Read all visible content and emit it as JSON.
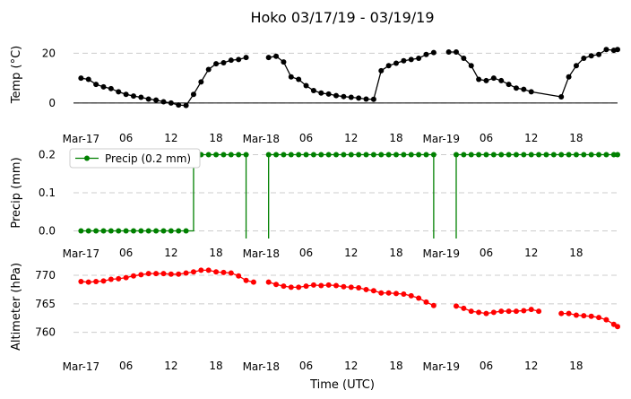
{
  "chart_data": {
    "type": "line",
    "title": "Hoko 03/17/19 - 03/19/19",
    "xlabel": "Time (UTC)",
    "x_ticks": [
      "Mar-17",
      "06",
      "12",
      "18",
      "Mar-18",
      "06",
      "12",
      "18",
      "Mar-19",
      "06",
      "12",
      "18"
    ],
    "x_tick_hours": [
      0,
      6,
      12,
      18,
      24,
      30,
      36,
      42,
      48,
      54,
      60,
      66
    ],
    "xlim": [
      -1,
      71.5
    ],
    "panels": [
      {
        "name": "temperature",
        "ylabel": "Temp (°C)",
        "ylim": [
          -4,
          27
        ],
        "yticks": [
          0,
          20
        ],
        "grid": true,
        "baseline": 0,
        "color": "#000000",
        "legend": "",
        "step": false,
        "series": [
          [
            [
              0,
              10
            ],
            [
              1,
              9.5
            ],
            [
              2,
              7.5
            ],
            [
              3,
              6.5
            ],
            [
              4,
              5.8
            ],
            [
              5,
              4.5
            ],
            [
              6,
              3.5
            ],
            [
              7,
              2.8
            ],
            [
              8,
              2.3
            ],
            [
              9,
              1.6
            ],
            [
              10,
              1.2
            ],
            [
              11,
              0.5
            ],
            [
              12,
              0
            ],
            [
              13,
              -0.8
            ],
            [
              14,
              -1
            ],
            [
              15,
              3.5
            ],
            [
              16,
              8.5
            ],
            [
              17,
              13.5
            ],
            [
              18,
              15.8
            ],
            [
              19,
              16.2
            ],
            [
              20,
              17.2
            ],
            [
              21,
              17.5
            ],
            [
              22,
              18.3
            ]
          ],
          [
            [
              25,
              18.3
            ],
            [
              26,
              18.8
            ],
            [
              27,
              16.5
            ],
            [
              28,
              10.5
            ],
            [
              29,
              9.5
            ],
            [
              30,
              7
            ],
            [
              31,
              5
            ],
            [
              32,
              4
            ],
            [
              33,
              3.6
            ],
            [
              34,
              3
            ],
            [
              35,
              2.6
            ],
            [
              36,
              2.3
            ],
            [
              37,
              2
            ],
            [
              38,
              1.6
            ],
            [
              39,
              1.5
            ],
            [
              40,
              13
            ],
            [
              41,
              15
            ],
            [
              42,
              16
            ],
            [
              43,
              17
            ],
            [
              44,
              17.5
            ],
            [
              45,
              18
            ],
            [
              46,
              19.5
            ],
            [
              47,
              20.3
            ]
          ],
          [
            [
              49,
              20.5
            ],
            [
              50,
              20.5
            ],
            [
              51,
              18
            ],
            [
              52,
              15
            ],
            [
              53,
              9.5
            ],
            [
              54,
              9
            ],
            [
              55,
              10
            ],
            [
              56,
              9
            ],
            [
              57,
              7.5
            ],
            [
              58,
              6
            ],
            [
              59,
              5.5
            ],
            [
              60,
              4.5
            ],
            [
              64,
              2.5
            ],
            [
              65,
              10.5
            ],
            [
              66,
              15
            ],
            [
              67,
              18
            ],
            [
              68,
              19
            ],
            [
              69,
              19.5
            ],
            [
              70,
              21.5
            ],
            [
              71,
              21.2
            ],
            [
              71.5,
              21.5
            ]
          ]
        ]
      },
      {
        "name": "precipitation",
        "ylabel": "Precip (mm)",
        "ylim": [
          -0.02,
          0.22
        ],
        "yticks": [
          0.0,
          0.1,
          0.2
        ],
        "grid": true,
        "baseline": null,
        "color": "#008000",
        "legend": "Precip (0.2 mm)",
        "step": true,
        "series": [
          [
            [
              0,
              0
            ],
            [
              1,
              0
            ],
            [
              2,
              0
            ],
            [
              3,
              0
            ],
            [
              4,
              0
            ],
            [
              5,
              0
            ],
            [
              6,
              0
            ],
            [
              7,
              0
            ],
            [
              8,
              0
            ],
            [
              9,
              0
            ],
            [
              10,
              0
            ],
            [
              11,
              0
            ],
            [
              12,
              0
            ],
            [
              13,
              0
            ],
            [
              14,
              0
            ],
            [
              15,
              0.2
            ],
            [
              16,
              0.2
            ],
            [
              17,
              0.2
            ],
            [
              18,
              0.2
            ],
            [
              19,
              0.2
            ],
            [
              20,
              0.2
            ],
            [
              21,
              0.2
            ],
            [
              22,
              0.2
            ]
          ],
          [
            [
              25,
              0.2
            ],
            [
              26,
              0.2
            ],
            [
              27,
              0.2
            ],
            [
              28,
              0.2
            ],
            [
              29,
              0.2
            ],
            [
              30,
              0.2
            ],
            [
              31,
              0.2
            ],
            [
              32,
              0.2
            ],
            [
              33,
              0.2
            ],
            [
              34,
              0.2
            ],
            [
              35,
              0.2
            ],
            [
              36,
              0.2
            ],
            [
              37,
              0.2
            ],
            [
              38,
              0.2
            ],
            [
              39,
              0.2
            ],
            [
              40,
              0.2
            ],
            [
              41,
              0.2
            ],
            [
              42,
              0.2
            ],
            [
              43,
              0.2
            ],
            [
              44,
              0.2
            ],
            [
              45,
              0.2
            ],
            [
              46,
              0.2
            ],
            [
              47,
              0.2
            ]
          ],
          [
            [
              50,
              0.2
            ],
            [
              51,
              0.2
            ],
            [
              52,
              0.2
            ],
            [
              53,
              0.2
            ],
            [
              54,
              0.2
            ],
            [
              55,
              0.2
            ],
            [
              56,
              0.2
            ],
            [
              57,
              0.2
            ],
            [
              58,
              0.2
            ],
            [
              59,
              0.2
            ],
            [
              60,
              0.2
            ],
            [
              61,
              0.2
            ],
            [
              62,
              0.2
            ],
            [
              63,
              0.2
            ],
            [
              64,
              0.2
            ],
            [
              65,
              0.2
            ],
            [
              66,
              0.2
            ],
            [
              67,
              0.2
            ],
            [
              68,
              0.2
            ],
            [
              69,
              0.2
            ],
            [
              70,
              0.2
            ],
            [
              71,
              0.2
            ],
            [
              71.5,
              0.2
            ]
          ]
        ]
      },
      {
        "name": "altimeter",
        "ylabel": "Altimeter (hPa)",
        "ylim": [
          756,
          773
        ],
        "yticks": [
          760,
          765,
          770
        ],
        "grid": true,
        "baseline": null,
        "color": "#ff0000",
        "legend": "",
        "step": false,
        "series": [
          [
            [
              0,
              768.9
            ],
            [
              1,
              768.8
            ],
            [
              2,
              768.9
            ],
            [
              3,
              769
            ],
            [
              4,
              769.3
            ],
            [
              5,
              769.4
            ],
            [
              6,
              769.6
            ],
            [
              7,
              769.9
            ],
            [
              8,
              770.1
            ],
            [
              9,
              770.3
            ],
            [
              10,
              770.3
            ],
            [
              11,
              770.3
            ],
            [
              12,
              770.2
            ],
            [
              13,
              770.2
            ],
            [
              14,
              770.4
            ],
            [
              15,
              770.6
            ],
            [
              16,
              770.9
            ],
            [
              17,
              770.9
            ],
            [
              18,
              770.6
            ],
            [
              19,
              770.5
            ],
            [
              20,
              770.4
            ],
            [
              21,
              769.9
            ],
            [
              22,
              769.1
            ],
            [
              23,
              768.8
            ]
          ],
          [
            [
              25,
              768.8
            ],
            [
              26,
              768.4
            ],
            [
              27,
              768.1
            ],
            [
              28,
              767.9
            ],
            [
              29,
              767.9
            ],
            [
              30,
              768.1
            ],
            [
              31,
              768.3
            ],
            [
              32,
              768.2
            ],
            [
              33,
              768.3
            ],
            [
              34,
              768.2
            ],
            [
              35,
              768
            ],
            [
              36,
              767.9
            ],
            [
              37,
              767.8
            ],
            [
              38,
              767.5
            ],
            [
              39,
              767.3
            ],
            [
              40,
              766.9
            ],
            [
              41,
              766.9
            ],
            [
              42,
              766.8
            ],
            [
              43,
              766.7
            ],
            [
              44,
              766.4
            ],
            [
              45,
              766
            ],
            [
              46,
              765.3
            ],
            [
              47,
              764.7
            ]
          ],
          [
            [
              50,
              764.6
            ],
            [
              51,
              764.2
            ],
            [
              52,
              763.7
            ],
            [
              53,
              763.5
            ],
            [
              54,
              763.3
            ],
            [
              55,
              763.5
            ],
            [
              56,
              763.7
            ],
            [
              57,
              763.7
            ],
            [
              58,
              763.7
            ],
            [
              59,
              763.8
            ],
            [
              60,
              764
            ],
            [
              61,
              763.7
            ]
          ],
          [
            [
              64,
              763.3
            ],
            [
              65,
              763.3
            ],
            [
              66,
              763
            ],
            [
              67,
              762.9
            ],
            [
              68,
              762.8
            ],
            [
              69,
              762.6
            ],
            [
              70,
              762.2
            ],
            [
              71,
              761.4
            ],
            [
              71.5,
              761
            ]
          ]
        ]
      }
    ]
  }
}
